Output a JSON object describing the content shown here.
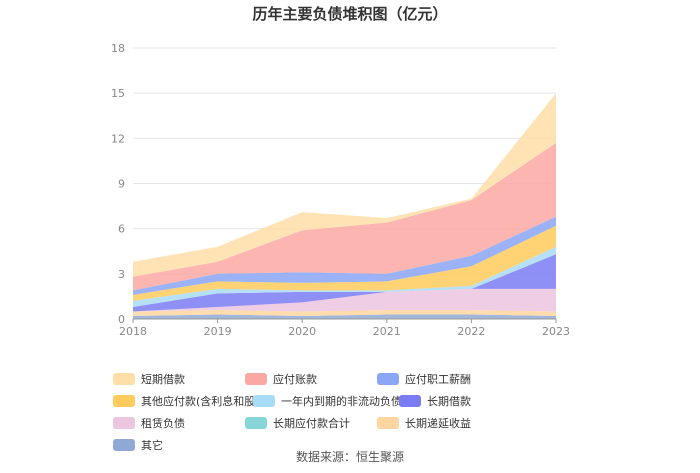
{
  "chart_data": {
    "type": "area",
    "stacked": true,
    "title": "历年主要负债堆积图（亿元）",
    "x": [
      "2018",
      "2019",
      "2020",
      "2021",
      "2022",
      "2023"
    ],
    "y_ticks": [
      "0",
      "3",
      "6",
      "9",
      "12",
      "15",
      "18"
    ],
    "ylim": [
      0,
      18
    ],
    "grid": true,
    "legend_position": "bottom",
    "series": [
      {
        "name": "其它",
        "color": "#8fa9d4",
        "values": [
          0.2,
          0.3,
          0.2,
          0.3,
          0.3,
          0.2
        ]
      },
      {
        "name": "长期递延收益",
        "color": "#ffd6a0",
        "values": [
          0.3,
          0.3,
          0.3,
          0.3,
          0.3,
          0.3
        ]
      },
      {
        "name": "长期应付款合计",
        "color": "#86d6d8",
        "values": [
          0.0,
          0.0,
          0.0,
          0.0,
          0.0,
          0.0
        ]
      },
      {
        "name": "租赁负债",
        "color": "#ecc5e1",
        "values": [
          0.0,
          0.2,
          0.6,
          1.2,
          1.4,
          1.5
        ]
      },
      {
        "name": "长期借款",
        "color": "#7b7cf4",
        "values": [
          0.3,
          0.9,
          0.7,
          0.0,
          0.0,
          2.3
        ]
      },
      {
        "name": "一年内到期的非流动负债",
        "color": "#a8dbf5",
        "values": [
          0.4,
          0.3,
          0.1,
          0.1,
          0.2,
          0.5
        ]
      },
      {
        "name": "其他应付款(含利息和股利)",
        "color": "#ffcb5c",
        "values": [
          0.4,
          0.5,
          0.5,
          0.6,
          1.3,
          1.4
        ]
      },
      {
        "name": "应付职工薪酬",
        "color": "#8aa6f5",
        "values": [
          0.3,
          0.5,
          0.7,
          0.5,
          0.7,
          0.6
        ]
      },
      {
        "name": "应付账款",
        "color": "#fba8a3",
        "values": [
          0.9,
          0.8,
          2.8,
          3.4,
          3.7,
          4.9
        ]
      },
      {
        "name": "短期借款",
        "color": "#ffdea8",
        "values": [
          1.0,
          1.0,
          1.2,
          0.3,
          0.1,
          3.3
        ]
      }
    ],
    "legend": [
      "短期借款",
      "应付账款",
      "应付职工薪酬",
      "其他应付款(含利息和股利)",
      "一年内到期的非流动负债",
      "长期借款",
      "租赁负债",
      "长期应付款合计",
      "长期递延收益",
      "其它"
    ]
  },
  "source_text": "数据来源：恒生聚源"
}
